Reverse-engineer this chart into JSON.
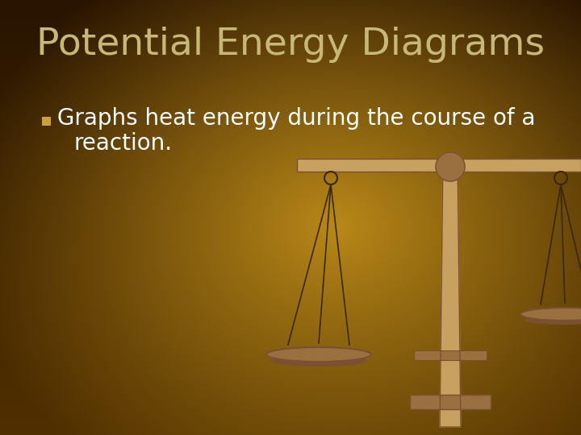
{
  "title": "Potential Energy Diagrams",
  "title_color": "#C8B878",
  "title_fontsize": 34,
  "bullet_text_line1": "Graphs heat energy during the course of a",
  "bullet_text_line2": "reaction.",
  "bullet_color": "#FFFFFF",
  "bullet_fontsize": 20,
  "bullet_marker_color": "#C8A040",
  "figsize": [
    7.2,
    5.4
  ],
  "dpi": 100,
  "scale_color_light": "#C8A060",
  "scale_color_mid": "#9A7040",
  "scale_color_dark": "#7A5030",
  "scale_color_string": "#3A2800"
}
